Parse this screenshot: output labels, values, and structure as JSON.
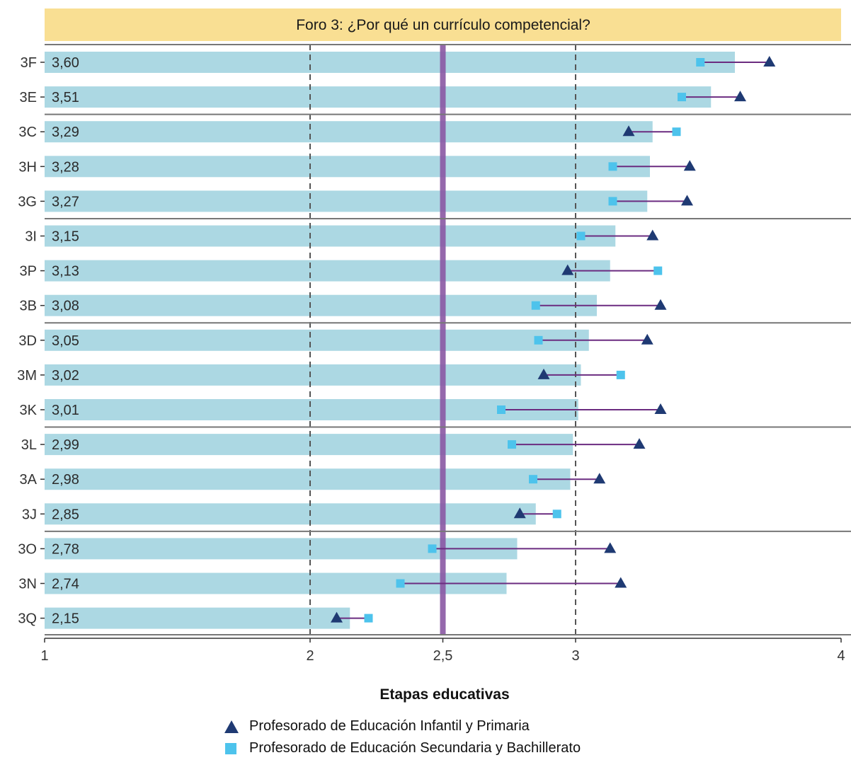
{
  "chart_data": {
    "type": "bar",
    "title": "Foro 3: ¿Por qué un currículo competencial?",
    "categories": [
      "3F",
      "3E",
      "3C",
      "3H",
      "3G",
      "3I",
      "3P",
      "3B",
      "3D",
      "3M",
      "3K",
      "3L",
      "3A",
      "3J",
      "3O",
      "3N",
      "3Q"
    ],
    "values": [
      3.6,
      3.51,
      3.29,
      3.28,
      3.27,
      3.15,
      3.13,
      3.08,
      3.05,
      3.02,
      3.01,
      2.99,
      2.98,
      2.85,
      2.78,
      2.74,
      2.15
    ],
    "value_labels": [
      "3,60",
      "3,51",
      "3,29",
      "3,28",
      "3,27",
      "3,15",
      "3,13",
      "3,08",
      "3,05",
      "3,02",
      "3,01",
      "2,99",
      "2,98",
      "2,85",
      "2,78",
      "2,74",
      "2,15"
    ],
    "series": [
      {
        "name": "Profesorado de Educación Infantil y Primaria",
        "marker": "triangle",
        "color": "#1f3a73",
        "values": [
          3.73,
          3.62,
          3.2,
          3.43,
          3.42,
          3.29,
          2.97,
          3.32,
          3.27,
          2.88,
          3.32,
          3.24,
          3.09,
          2.79,
          3.13,
          3.17,
          2.1
        ]
      },
      {
        "name": "Profesorado de Educación Secundaria y Bachillerato",
        "marker": "square",
        "color": "#4dc3ec",
        "values": [
          3.47,
          3.4,
          3.38,
          3.14,
          3.14,
          3.02,
          3.31,
          2.85,
          2.86,
          3.17,
          2.72,
          2.76,
          2.84,
          2.93,
          2.46,
          2.34,
          2.22
        ]
      }
    ],
    "group_separators_after": [
      1,
      4,
      7,
      10,
      13
    ],
    "xlim": [
      1,
      4
    ],
    "xticks": [
      1,
      2,
      2.5,
      3,
      4
    ],
    "xtick_labels": [
      "1",
      "2",
      "2,5",
      "3",
      "4"
    ],
    "reference_lines_dashed": [
      2,
      3
    ],
    "reference_line_solid": 2.5,
    "legend_title": "Etapas educativas",
    "legend_position": "bottom",
    "grid": false,
    "colors": {
      "bar": "#acd8e3",
      "title_band": "#f9df93",
      "ref_line": "#8a58a4",
      "connector": "#6b2c80",
      "triangle": "#1f3a73",
      "square": "#4dc3ec",
      "separator": "#777777"
    }
  }
}
